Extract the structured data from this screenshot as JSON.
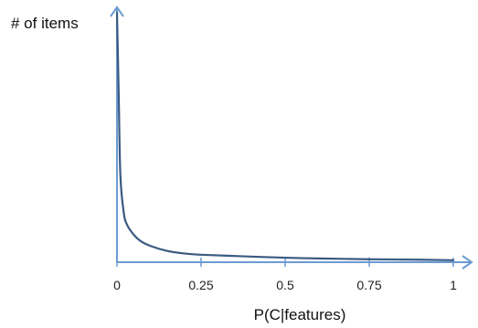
{
  "chart_data": {
    "type": "line",
    "title": "",
    "xlabel": "P(C|features)",
    "ylabel": "# of items",
    "x_ticks": [
      "0",
      "0.25",
      "0.5",
      "0.75",
      "1"
    ],
    "x_tick_values": [
      0,
      0.25,
      0.5,
      0.75,
      1
    ],
    "xlim": [
      0,
      1
    ],
    "ylim": [
      0,
      100
    ],
    "grid": false,
    "legend": "none",
    "y_ticks_shown": false,
    "series": [
      {
        "x": [
          0,
          0.005,
          0.01,
          0.02,
          0.03,
          0.05,
          0.07,
          0.1,
          0.15,
          0.2,
          0.25,
          0.35,
          0.5,
          0.6,
          0.75,
          0.9,
          1.0
        ],
        "y": [
          100,
          68,
          35,
          20,
          15,
          11,
          8.5,
          6.5,
          4.5,
          3.5,
          3,
          2.5,
          1.8,
          1.5,
          1.2,
          1.0,
          0.8
        ],
        "color": "#3a5a82"
      }
    ],
    "axis_color": "#6c9bd2"
  }
}
